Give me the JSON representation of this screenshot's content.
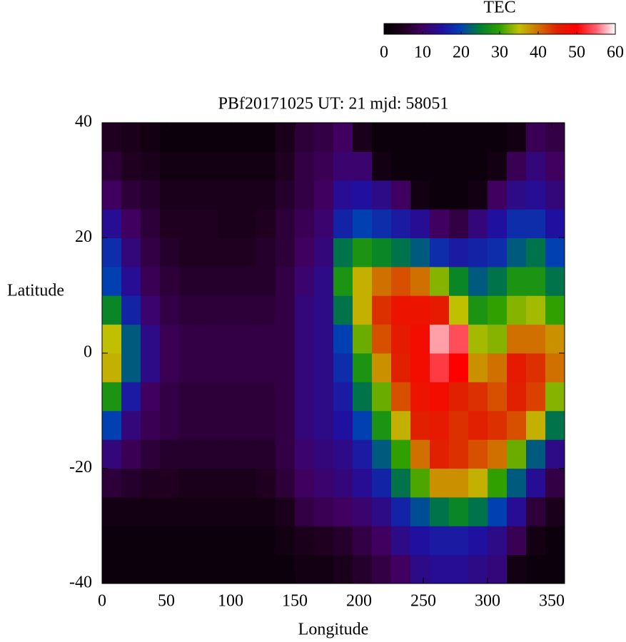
{
  "chart_data": {
    "type": "heatmap",
    "title": "PBf20171025  UT: 21  mjd: 58051",
    "x_label": "Longitude",
    "y_label": "Latitude",
    "xlim": [
      0,
      360
    ],
    "ylim": [
      -40,
      40
    ],
    "xticks": [
      0,
      50,
      100,
      150,
      200,
      250,
      300,
      350
    ],
    "yticks": [
      -40,
      -20,
      0,
      20,
      40
    ],
    "x": [
      0,
      15,
      30,
      45,
      60,
      75,
      90,
      105,
      120,
      135,
      150,
      165,
      180,
      195,
      210,
      225,
      240,
      255,
      270,
      285,
      300,
      315,
      330,
      345
    ],
    "y": [
      -40,
      -35,
      -30,
      -25,
      -20,
      -15,
      -10,
      -5,
      0,
      5,
      10,
      15,
      20,
      25,
      30,
      35
    ],
    "values": [
      [
        2,
        2,
        2,
        2,
        2,
        2,
        2,
        2,
        2,
        2,
        3,
        3,
        4,
        6,
        8,
        10,
        13,
        14,
        14,
        13,
        12,
        3,
        2,
        2
      ],
      [
        2,
        2,
        2,
        2,
        2,
        2,
        2,
        2,
        2,
        3,
        4,
        5,
        6,
        8,
        10,
        13,
        15,
        16,
        16,
        15,
        13,
        9,
        3,
        2
      ],
      [
        3,
        3,
        3,
        3,
        3,
        3,
        3,
        3,
        3,
        4,
        8,
        9,
        10,
        11,
        13,
        17,
        21,
        24,
        26,
        24,
        20,
        14,
        7,
        4
      ],
      [
        7,
        6,
        5,
        5,
        4,
        4,
        4,
        4,
        5,
        7,
        10,
        11,
        12,
        14,
        17,
        24,
        31,
        38,
        38,
        36,
        30,
        22,
        14,
        8
      ],
      [
        12,
        9,
        7,
        6,
        6,
        6,
        6,
        6,
        6,
        8,
        11,
        12,
        13,
        16,
        22,
        30,
        40,
        45,
        44,
        42,
        40,
        32,
        22,
        13
      ],
      [
        20,
        12,
        9,
        8,
        7,
        7,
        7,
        7,
        7,
        8,
        12,
        13,
        15,
        20,
        28,
        36,
        45,
        46,
        44,
        45,
        44,
        42,
        36,
        24
      ],
      [
        28,
        16,
        10,
        8,
        7,
        7,
        7,
        7,
        7,
        8,
        12,
        13,
        16,
        24,
        32,
        42,
        47,
        48,
        45,
        44,
        42,
        45,
        43,
        33
      ],
      [
        36,
        22,
        13,
        9,
        8,
        8,
        8,
        8,
        8,
        8,
        12,
        13,
        18,
        28,
        38,
        45,
        48,
        53,
        50,
        38,
        40,
        46,
        44,
        40
      ],
      [
        35,
        22,
        13,
        9,
        8,
        8,
        8,
        8,
        8,
        8,
        12,
        13,
        20,
        32,
        42,
        46,
        48,
        57,
        54,
        34,
        33,
        40,
        40,
        38
      ],
      [
        26,
        17,
        11,
        8,
        7,
        7,
        7,
        7,
        7,
        8,
        12,
        13,
        24,
        36,
        44,
        47,
        47,
        46,
        35,
        28,
        30,
        33,
        34,
        30
      ],
      [
        20,
        14,
        9,
        7,
        6,
        6,
        6,
        6,
        6,
        8,
        11,
        13,
        28,
        36,
        40,
        42,
        40,
        33,
        26,
        22,
        24,
        28,
        28,
        24
      ],
      [
        18,
        12,
        8,
        6,
        5,
        5,
        5,
        5,
        6,
        7,
        10,
        12,
        24,
        28,
        26,
        24,
        22,
        18,
        16,
        17,
        18,
        22,
        24,
        20
      ],
      [
        14,
        10,
        7,
        5,
        5,
        5,
        4,
        4,
        5,
        7,
        9,
        11,
        17,
        20,
        18,
        16,
        14,
        10,
        8,
        12,
        15,
        18,
        18,
        15
      ],
      [
        10,
        7,
        6,
        4,
        4,
        4,
        4,
        4,
        4,
        6,
        8,
        10,
        14,
        15,
        13,
        10,
        3,
        2,
        2,
        3,
        10,
        13,
        14,
        12
      ],
      [
        7,
        5,
        4,
        3,
        3,
        3,
        3,
        3,
        3,
        5,
        8,
        9,
        11,
        11,
        3,
        2,
        2,
        2,
        2,
        2,
        3,
        9,
        12,
        10
      ],
      [
        5,
        4,
        3,
        2,
        2,
        2,
        2,
        2,
        2,
        4,
        7,
        8,
        10,
        4,
        2,
        2,
        2,
        2,
        2,
        2,
        2,
        3,
        9,
        8
      ]
    ],
    "colorbar": {
      "label": "TEC",
      "lim": [
        0,
        60
      ],
      "ticks": [
        0,
        10,
        20,
        30,
        40,
        50,
        60
      ]
    },
    "colormap": [
      "#000000",
      "#200020",
      "#400060",
      "#2010a0",
      "#0040b0",
      "#008030",
      "#30a000",
      "#c0c000",
      "#d07000",
      "#e02000",
      "#ff0000",
      "#ff6070",
      "#ffffff"
    ]
  }
}
